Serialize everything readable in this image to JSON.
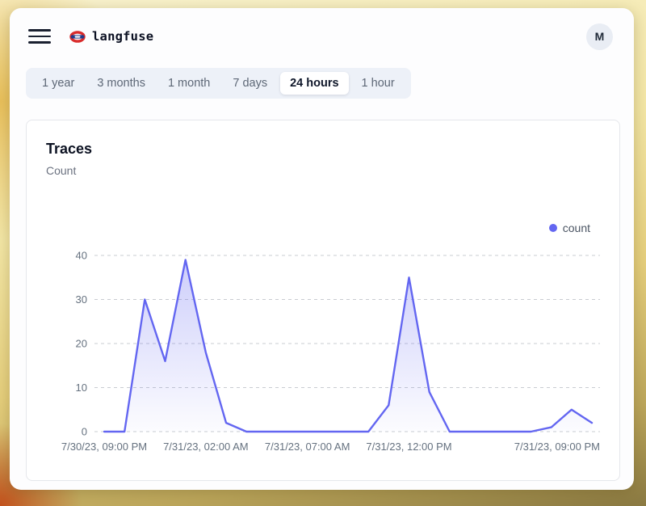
{
  "header": {
    "brand": "langfuse",
    "avatar_initial": "M"
  },
  "time_range_tabs": {
    "items": [
      {
        "label": "1 year",
        "selected": false
      },
      {
        "label": "3 months",
        "selected": false
      },
      {
        "label": "1 month",
        "selected": false
      },
      {
        "label": "7 days",
        "selected": false
      },
      {
        "label": "24 hours",
        "selected": true
      },
      {
        "label": "1 hour",
        "selected": false
      }
    ]
  },
  "chart_card": {
    "title": "Traces",
    "subtitle": "Count",
    "legend": [
      {
        "label": "count",
        "color": "#6366f1"
      }
    ]
  },
  "chart_data": {
    "type": "area",
    "title": "Traces",
    "ylabel": "Count",
    "x_unit": "hour",
    "x_start": "7/30/23, 09:00 PM",
    "x_end": "7/31/23, 09:00 PM",
    "x_tick_labels": [
      {
        "label": "7/30/23, 09:00 PM",
        "hour_index": 0,
        "align": "center"
      },
      {
        "label": "7/31/23, 02:00 AM",
        "hour_index": 5,
        "align": "center"
      },
      {
        "label": "7/31/23, 07:00 AM",
        "hour_index": 10,
        "align": "center"
      },
      {
        "label": "7/31/23, 12:00 PM",
        "hour_index": 15,
        "align": "center"
      },
      {
        "label": "7/31/23, 09:00 PM",
        "hour_index": 24,
        "align": "right"
      }
    ],
    "y_ticks": [
      0,
      10,
      20,
      30,
      40
    ],
    "ylim": [
      0,
      40
    ],
    "grid": "horizontal-dashed",
    "legend_position": "top-right",
    "series": [
      {
        "name": "count",
        "color": "#6366f1",
        "values": [
          0,
          0,
          30,
          16,
          39,
          18,
          2,
          0,
          0,
          0,
          0,
          0,
          0,
          0,
          6,
          35,
          9,
          0,
          0,
          0,
          0,
          0,
          1,
          5,
          2
        ]
      }
    ]
  },
  "colors": {
    "accent": "#6366f1",
    "grid_line": "#c9ccd1",
    "tab_bar_bg": "#edf1f8"
  }
}
